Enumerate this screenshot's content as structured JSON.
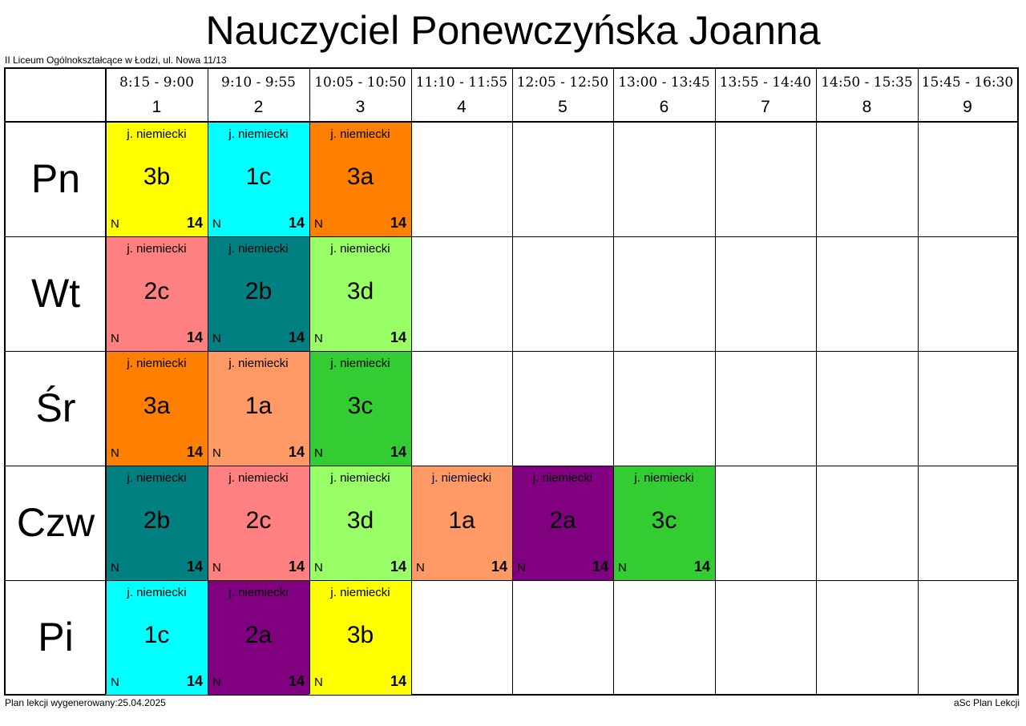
{
  "header": {
    "title": "Nauczyciel Ponewczyńska Joanna",
    "school": "II Liceum Ogólnokształcące w Łodzi, ul. Nowa 11/13"
  },
  "periods": [
    {
      "time": "8:15 - 9:00",
      "num": "1"
    },
    {
      "time": "9:10 - 9:55",
      "num": "2"
    },
    {
      "time": "10:05 - 10:50",
      "num": "3"
    },
    {
      "time": "11:10 - 11:55",
      "num": "4"
    },
    {
      "time": "12:05 - 12:50",
      "num": "5"
    },
    {
      "time": "13:00 - 13:45",
      "num": "6"
    },
    {
      "time": "13:55 - 14:40",
      "num": "7"
    },
    {
      "time": "14:50 - 15:35",
      "num": "8"
    },
    {
      "time": "15:45 - 16:30",
      "num": "9"
    }
  ],
  "days": [
    "Pn",
    "Wt",
    "Śr",
    "Czw",
    "Pi"
  ],
  "lessons": [
    {
      "day": 0,
      "period": 0,
      "subject": "j. niemiecki",
      "class": "3b",
      "group": "N",
      "room": "14",
      "color": "#ffff00"
    },
    {
      "day": 0,
      "period": 1,
      "subject": "j. niemiecki",
      "class": "1c",
      "group": "N",
      "room": "14",
      "color": "#00ffff"
    },
    {
      "day": 0,
      "period": 2,
      "subject": "j. niemiecki",
      "class": "3a",
      "group": "N",
      "room": "14",
      "color": "#ff8000"
    },
    {
      "day": 1,
      "period": 0,
      "subject": "j. niemiecki",
      "class": "2c",
      "group": "N",
      "room": "14",
      "color": "#ff8080"
    },
    {
      "day": 1,
      "period": 1,
      "subject": "j. niemiecki",
      "class": "2b",
      "group": "N",
      "room": "14",
      "color": "#008080"
    },
    {
      "day": 1,
      "period": 2,
      "subject": "j. niemiecki",
      "class": "3d",
      "group": "N",
      "room": "14",
      "color": "#99ff66"
    },
    {
      "day": 2,
      "period": 0,
      "subject": "j. niemiecki",
      "class": "3a",
      "group": "N",
      "room": "14",
      "color": "#ff8000"
    },
    {
      "day": 2,
      "period": 1,
      "subject": "j. niemiecki",
      "class": "1a",
      "group": "N",
      "room": "14",
      "color": "#ff9966"
    },
    {
      "day": 2,
      "period": 2,
      "subject": "j. niemiecki",
      "class": "3c",
      "group": "N",
      "room": "14",
      "color": "#33cc33"
    },
    {
      "day": 3,
      "period": 0,
      "subject": "j. niemiecki",
      "class": "2b",
      "group": "N",
      "room": "14",
      "color": "#008080"
    },
    {
      "day": 3,
      "period": 1,
      "subject": "j. niemiecki",
      "class": "2c",
      "group": "N",
      "room": "14",
      "color": "#ff8080"
    },
    {
      "day": 3,
      "period": 2,
      "subject": "j. niemiecki",
      "class": "3d",
      "group": "N",
      "room": "14",
      "color": "#99ff66"
    },
    {
      "day": 3,
      "period": 3,
      "subject": "j. niemiecki",
      "class": "1a",
      "group": "N",
      "room": "14",
      "color": "#ff9966"
    },
    {
      "day": 3,
      "period": 4,
      "subject": "j. niemiecki",
      "class": "2a",
      "group": "N",
      "room": "14",
      "color": "#800080"
    },
    {
      "day": 3,
      "period": 5,
      "subject": "j. niemiecki",
      "class": "3c",
      "group": "N",
      "room": "14",
      "color": "#33cc33"
    },
    {
      "day": 4,
      "period": 0,
      "subject": "j. niemiecki",
      "class": "1c",
      "group": "N",
      "room": "14",
      "color": "#00ffff"
    },
    {
      "day": 4,
      "period": 1,
      "subject": "j. niemiecki",
      "class": "2a",
      "group": "N",
      "room": "14",
      "color": "#800080"
    },
    {
      "day": 4,
      "period": 2,
      "subject": "j. niemiecki",
      "class": "3b",
      "group": "N",
      "room": "14",
      "color": "#ffff00"
    }
  ],
  "footer": {
    "generated": "Plan lekcji wygenerowany:25.04.2025",
    "software": "aSc Plan Lekcji"
  }
}
